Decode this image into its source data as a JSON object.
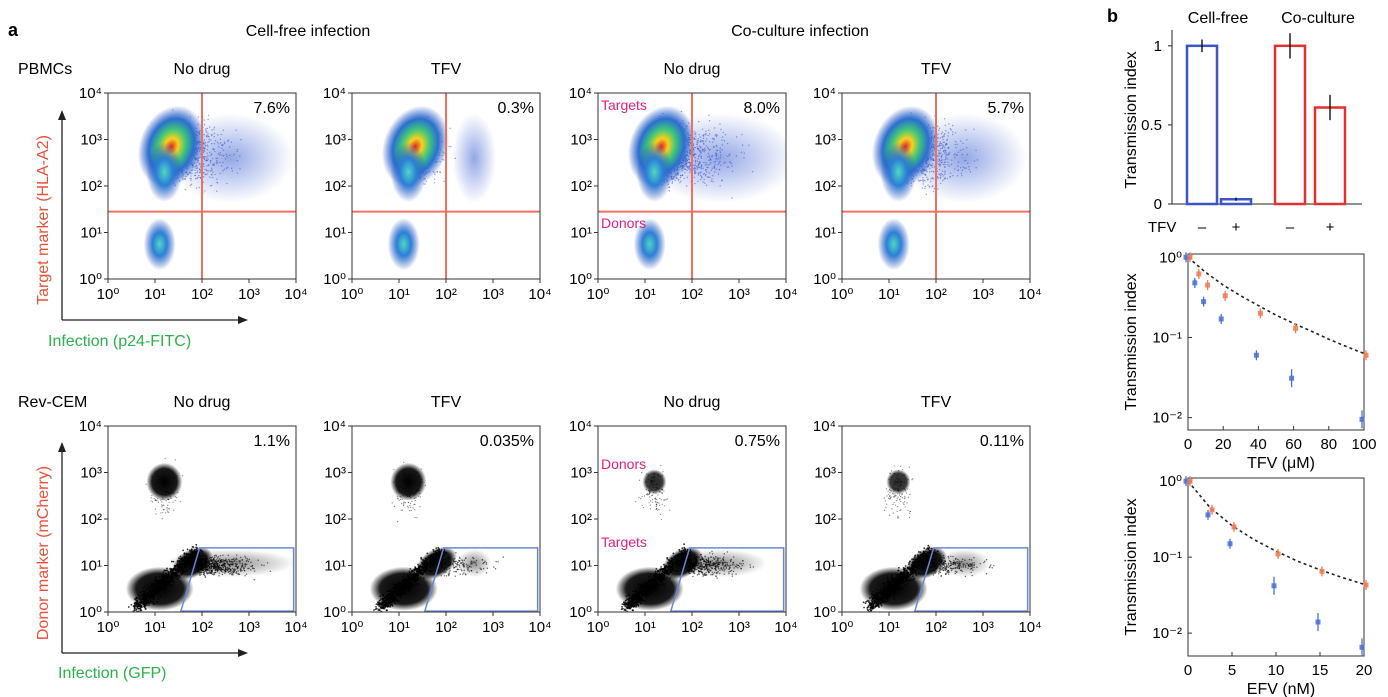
{
  "figure": {
    "panel_a_label": "a",
    "panel_b_label": "b",
    "cell_free_header": "Cell-free infection",
    "coculture_header": "Co-culture infection",
    "row1_label": "PBMCs",
    "row2_label": "Rev-CEM",
    "row1_ylabel": "Target marker (HLA-A2)",
    "row1_xlabel": "Infection (p24-FITC)",
    "row2_ylabel": "Donor marker (mCherry)",
    "row2_xlabel": "Infection (GFP)"
  },
  "colors": {
    "red_label": "#e8513a",
    "green_label": "#2bb24c",
    "magenta_annotation": "#e0217c",
    "gate_line": "#f07060",
    "gate_box": "#6a86d8",
    "bar_blue": "#3c57c4",
    "bar_red": "#e23131",
    "series_blue": "#4a6fd8",
    "series_red": "#f07a55"
  },
  "chart_data": [
    {
      "type": "scatter",
      "row": "PBMCs",
      "subtype": "flow-cytometry density (pseudocolor)",
      "axis_scale": "log",
      "x_ticks": [
        "10⁰",
        "10¹",
        "10²",
        "10³",
        "10⁴"
      ],
      "y_ticks": [
        "10⁰",
        "10¹",
        "10²",
        "10³",
        "10⁴"
      ],
      "panels": [
        {
          "condition": "No drug",
          "infection": "Cell-free",
          "percentage": "7.6%",
          "annotations": []
        },
        {
          "condition": "TFV",
          "infection": "Cell-free",
          "percentage": "0.3%",
          "annotations": []
        },
        {
          "condition": "No drug",
          "infection": "Co-culture",
          "percentage": "8.0%",
          "annotations": [
            "Targets",
            "Donors"
          ]
        },
        {
          "condition": "TFV",
          "infection": "Co-culture",
          "percentage": "5.7%",
          "annotations": []
        }
      ]
    },
    {
      "type": "scatter",
      "row": "Rev-CEM",
      "subtype": "flow-cytometry dot plot",
      "axis_scale": "log",
      "x_ticks": [
        "10⁰",
        "10¹",
        "10²",
        "10³",
        "10⁴"
      ],
      "y_ticks": [
        "10⁰",
        "10¹",
        "10²",
        "10³",
        "10⁴"
      ],
      "panels": [
        {
          "condition": "No drug",
          "infection": "Cell-free",
          "percentage": "1.1%",
          "annotations": []
        },
        {
          "condition": "TFV",
          "infection": "Cell-free",
          "percentage": "0.035%",
          "annotations": []
        },
        {
          "condition": "No drug",
          "infection": "Co-culture",
          "percentage": "0.75%",
          "annotations": [
            "Donors",
            "Targets"
          ]
        },
        {
          "condition": "TFV",
          "infection": "Co-culture",
          "percentage": "0.11%",
          "annotations": []
        }
      ]
    },
    {
      "type": "bar",
      "ylabel": "Transmission index",
      "group_labels": [
        "Cell-free",
        "Co-culture"
      ],
      "tfv_label": "TFV",
      "categories": [
        "–",
        "+",
        "–",
        "+"
      ],
      "values": [
        1.0,
        0.03,
        1.0,
        0.61
      ],
      "errors": [
        0.04,
        0.01,
        0.08,
        0.08
      ],
      "groups": [
        "Cell-free",
        "Cell-free",
        "Co-culture",
        "Co-culture"
      ],
      "y_ticks": [
        "0",
        "0.5",
        "1"
      ],
      "ylim": [
        0,
        1.1
      ]
    },
    {
      "type": "scatter",
      "scale_y": "log",
      "xlabel": "TFV (μM)",
      "ylabel": "Transmission index",
      "xlim": [
        0,
        100
      ],
      "ylim": [
        0.007,
        1.1
      ],
      "x_ticks": [
        "0",
        "20",
        "40",
        "60",
        "80",
        "100"
      ],
      "y_ticks": [
        "10⁰",
        "10⁻¹",
        "10⁻²"
      ],
      "series": [
        {
          "x": [
            0,
            5,
            10,
            20,
            40,
            60,
            100
          ],
          "y": [
            1.0,
            0.48,
            0.28,
            0.17,
            0.06,
            0.031,
            0.0095
          ],
          "color": "blue"
        },
        {
          "x": [
            0,
            5,
            10,
            20,
            40,
            60,
            100
          ],
          "y": [
            1.0,
            0.62,
            0.45,
            0.33,
            0.2,
            0.13,
            0.06
          ],
          "color": "red"
        }
      ],
      "fit": {
        "x": [
          0,
          10,
          20,
          30,
          40,
          50,
          60,
          70,
          80,
          90,
          100
        ],
        "y": [
          1.0,
          0.65,
          0.45,
          0.33,
          0.25,
          0.19,
          0.15,
          0.12,
          0.095,
          0.077,
          0.063
        ]
      }
    },
    {
      "type": "scatter",
      "scale_y": "log",
      "xlabel": "EFV (nM)",
      "ylabel": "Transmission index",
      "xlim": [
        0,
        20
      ],
      "ylim": [
        0.005,
        1.1
      ],
      "x_ticks": [
        "0",
        "5",
        "10",
        "15",
        "20"
      ],
      "y_ticks": [
        "10⁰",
        "10⁻¹",
        "10⁻²"
      ],
      "series": [
        {
          "x": [
            0,
            2.5,
            5,
            10,
            15,
            20
          ],
          "y": [
            1.0,
            0.36,
            0.15,
            0.042,
            0.014,
            0.0065
          ],
          "color": "blue"
        },
        {
          "x": [
            0,
            2.5,
            5,
            10,
            15,
            20
          ],
          "y": [
            1.0,
            0.42,
            0.25,
            0.11,
            0.065,
            0.043
          ],
          "color": "red"
        }
      ],
      "fit": {
        "x": [
          0,
          2.5,
          5,
          7.5,
          10,
          12.5,
          15,
          17.5,
          20
        ],
        "y": [
          1.0,
          0.45,
          0.26,
          0.17,
          0.12,
          0.088,
          0.068,
          0.054,
          0.044
        ]
      }
    }
  ]
}
